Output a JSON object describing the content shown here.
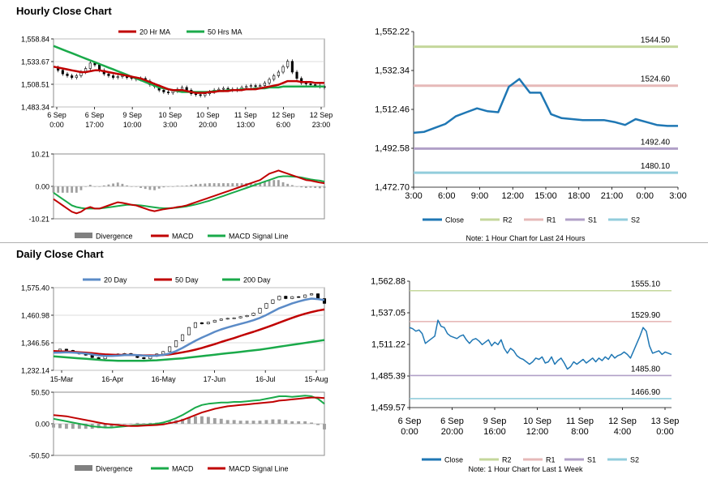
{
  "sections": {
    "hourly_title": "Hourly Close Chart",
    "daily_title": "Daily Close Chart"
  },
  "colors": {
    "red": "#c00000",
    "green": "#1aaa4a",
    "blue": "#5b8bc7",
    "close_blue": "#1f77b4",
    "r2": "#c4d79b",
    "r1": "#e6b9b8",
    "s1": "#b1a0c7",
    "s2": "#92cddc",
    "gray": "#808080"
  },
  "chart_data": [
    {
      "id": "hourly_price",
      "type": "line",
      "legend": [
        "20 Hr MA",
        "50 Hrs MA"
      ],
      "y_ticks": [
        "1,558.84",
        "1,533.67",
        "1,508.51",
        "1,483.34"
      ],
      "ylim": [
        1483.34,
        1558.84
      ],
      "x_ticks": [
        {
          "line1": "6 Sep",
          "line2": "0:00"
        },
        {
          "line1": "6 Sep",
          "line2": "17:00"
        },
        {
          "line1": "9 Sep",
          "line2": "10:00"
        },
        {
          "line1": "10 Sep",
          "line2": "3:00"
        },
        {
          "line1": "10 Sep",
          "line2": "20:00"
        },
        {
          "line1": "11 Sep",
          "line2": "13:00"
        },
        {
          "line1": "12 Sep",
          "line2": "6:00"
        },
        {
          "line1": "12 Sep",
          "line2": "23:00"
        }
      ],
      "series": [
        {
          "name": "Close",
          "values": [
            1527,
            1524,
            1520,
            1518,
            1516,
            1518,
            1522,
            1526,
            1532,
            1530,
            1524,
            1520,
            1518,
            1516,
            1517,
            1518,
            1516,
            1515,
            1514,
            1515,
            1512,
            1508,
            1506,
            1502,
            1500,
            1499,
            1501,
            1503,
            1505,
            1502,
            1498,
            1497,
            1496,
            1498,
            1500,
            1502,
            1503,
            1504,
            1503,
            1502,
            1503,
            1505,
            1506,
            1507,
            1506,
            1507,
            1510,
            1514,
            1518,
            1522,
            1528,
            1534,
            1522,
            1515,
            1510,
            1509,
            1508,
            1507,
            1506,
            1505
          ]
        },
        {
          "name": "20 Hr MA",
          "values": [
            1528,
            1527,
            1526,
            1525,
            1524,
            1523,
            1522,
            1522,
            1523,
            1524,
            1524,
            1523,
            1522,
            1521,
            1520,
            1519,
            1518,
            1517,
            1516,
            1515,
            1513,
            1511,
            1509,
            1507,
            1505,
            1503,
            1502,
            1502,
            1502,
            1501,
            1500,
            1499,
            1499,
            1499,
            1500,
            1500,
            1501,
            1501,
            1501,
            1502,
            1502,
            1502,
            1503,
            1503,
            1503,
            1504,
            1505,
            1506,
            1507,
            1508,
            1510,
            1512,
            1512,
            1512,
            1511,
            1511,
            1511,
            1510,
            1510,
            1510
          ]
        },
        {
          "name": "50 Hrs MA",
          "values": [
            1551,
            1549,
            1547,
            1545,
            1543,
            1541,
            1539,
            1537,
            1535,
            1533,
            1531,
            1529,
            1527,
            1525,
            1523,
            1521,
            1519,
            1517,
            1515,
            1513,
            1511,
            1509,
            1507,
            1505,
            1504,
            1503,
            1502,
            1501,
            1500,
            1500,
            1500,
            1500,
            1500,
            1500,
            1500,
            1501,
            1501,
            1501,
            1502,
            1502,
            1502,
            1503,
            1503,
            1503,
            1504,
            1504,
            1504,
            1505,
            1505,
            1505,
            1506,
            1506,
            1506,
            1506,
            1506,
            1506,
            1506,
            1506,
            1506,
            1506
          ]
        }
      ]
    },
    {
      "id": "hourly_macd",
      "type": "line",
      "legend": [
        "Divergence",
        "MACD",
        "MACD Signal Line"
      ],
      "y_ticks": [
        "10.21",
        "0.00",
        "-10.21"
      ],
      "ylim": [
        -10.21,
        10.21
      ],
      "series": [
        {
          "name": "MACD",
          "values": [
            -4,
            -5,
            -6,
            -7,
            -8,
            -8.5,
            -8,
            -7,
            -6.5,
            -7,
            -7,
            -6.5,
            -6,
            -5.5,
            -5,
            -5.2,
            -5.5,
            -5.8,
            -6,
            -6.5,
            -7,
            -7.5,
            -7.8,
            -7.5,
            -7.2,
            -7,
            -6.8,
            -6.5,
            -6.3,
            -6,
            -5.5,
            -5,
            -4.5,
            -4,
            -3.5,
            -3,
            -2.5,
            -2,
            -1.5,
            -1,
            -0.5,
            0,
            0.5,
            1,
            1.5,
            2,
            3,
            4,
            4.5,
            5,
            4.5,
            4,
            3.5,
            3,
            2.5,
            2,
            1.8,
            1.5,
            1.2,
            1
          ]
        },
        {
          "name": "MACD Signal Line",
          "values": [
            -2,
            -3,
            -4,
            -5,
            -6,
            -6.5,
            -6.8,
            -7,
            -7,
            -7,
            -7,
            -6.8,
            -6.6,
            -6.4,
            -6.2,
            -6,
            -5.8,
            -5.8,
            -5.9,
            -6,
            -6.2,
            -6.4,
            -6.6,
            -6.8,
            -6.9,
            -6.9,
            -6.8,
            -6.7,
            -6.5,
            -6.3,
            -6,
            -5.7,
            -5.3,
            -4.9,
            -4.5,
            -4,
            -3.5,
            -3,
            -2.5,
            -2,
            -1.5,
            -1,
            -0.5,
            0,
            0.5,
            1,
            1.5,
            2,
            2.5,
            3,
            3.2,
            3.2,
            3.1,
            3,
            2.8,
            2.5,
            2.2,
            2,
            1.8,
            1.5
          ]
        }
      ]
    },
    {
      "id": "hourly_levels",
      "type": "line",
      "y_ticks": [
        "1,552.22",
        "1,532.34",
        "1,512.46",
        "1,492.58",
        "1,472.70"
      ],
      "ylim": [
        1472.7,
        1552.22
      ],
      "x_ticks": [
        "3:00",
        "6:00",
        "9:00",
        "12:00",
        "15:00",
        "18:00",
        "21:00",
        "0:00",
        "3:00"
      ],
      "levels": [
        {
          "name": "R2",
          "value": 1544.5,
          "label": "1544.50"
        },
        {
          "name": "R1",
          "value": 1524.6,
          "label": "1524.60"
        },
        {
          "name": "S1",
          "value": 1492.4,
          "label": "1492.40"
        },
        {
          "name": "S2",
          "value": 1480.1,
          "label": "1480.10"
        }
      ],
      "series": [
        {
          "name": "Close",
          "values": [
            1500.5,
            1501,
            1503,
            1505,
            1509,
            1511,
            1513,
            1511.5,
            1511,
            1524,
            1528,
            1521,
            1521,
            1510,
            1508,
            1507.5,
            1507,
            1507,
            1507,
            1506,
            1504.5,
            1507.5,
            1506,
            1504.5,
            1504,
            1504
          ]
        }
      ],
      "legend": [
        "Close",
        "R2",
        "R1",
        "S1",
        "S2"
      ],
      "note": "Note: 1 Hour Chart for Last 24 Hours"
    },
    {
      "id": "daily_price",
      "type": "line",
      "legend": [
        "20 Day",
        "50 Day",
        "200 Day"
      ],
      "y_ticks": [
        "1,575.40",
        "1,460.98",
        "1,346.56",
        "1,232.14"
      ],
      "ylim": [
        1232.14,
        1575.4
      ],
      "x_ticks": [
        "15-Mar",
        "16-Apr",
        "16-May",
        "17-Jun",
        "16-Jul",
        "15-Aug"
      ],
      "series": [
        {
          "name": "Close",
          "values": [
            1310,
            1320,
            1315,
            1305,
            1300,
            1295,
            1285,
            1280,
            1290,
            1298,
            1300,
            1302,
            1295,
            1285,
            1280,
            1290,
            1300,
            1310,
            1330,
            1355,
            1380,
            1410,
            1430,
            1425,
            1432,
            1440,
            1445,
            1448,
            1450,
            1455,
            1460,
            1470,
            1490,
            1510,
            1525,
            1540,
            1530,
            1538,
            1535,
            1545,
            1550,
            1530,
            1510
          ]
        },
        {
          "name": "20 Day",
          "values": [
            1305,
            1306,
            1307,
            1306,
            1304,
            1302,
            1298,
            1294,
            1292,
            1292,
            1293,
            1295,
            1296,
            1295,
            1293,
            1292,
            1293,
            1296,
            1302,
            1312,
            1325,
            1340,
            1355,
            1368,
            1380,
            1392,
            1402,
            1410,
            1418,
            1425,
            1432,
            1440,
            1450,
            1462,
            1476,
            1490,
            1500,
            1510,
            1518,
            1525,
            1530,
            1528,
            1524
          ]
        },
        {
          "name": "50 Day",
          "values": [
            1312,
            1311,
            1310,
            1309,
            1307,
            1305,
            1303,
            1300,
            1298,
            1297,
            1296,
            1296,
            1296,
            1295,
            1294,
            1294,
            1294,
            1296,
            1298,
            1302,
            1307,
            1312,
            1318,
            1325,
            1333,
            1341,
            1350,
            1358,
            1366,
            1375,
            1384,
            1392,
            1401,
            1410,
            1420,
            1430,
            1440,
            1450,
            1459,
            1467,
            1474,
            1480,
            1485
          ]
        },
        {
          "name": "200 Day",
          "values": [
            1290,
            1288,
            1286,
            1284,
            1282,
            1280,
            1278,
            1276,
            1274,
            1273,
            1272,
            1272,
            1272,
            1272,
            1272,
            1273,
            1274,
            1276,
            1278,
            1280,
            1282,
            1285,
            1288,
            1291,
            1294,
            1297,
            1300,
            1303,
            1306,
            1309,
            1312,
            1315,
            1318,
            1322,
            1326,
            1330,
            1334,
            1338,
            1342,
            1346,
            1350,
            1354,
            1358
          ]
        }
      ]
    },
    {
      "id": "daily_macd",
      "type": "line",
      "legend": [
        "Divergence",
        "MACD",
        "MACD Signal Line"
      ],
      "y_ticks": [
        "50.50",
        "0.00",
        "-50.50"
      ],
      "ylim": [
        -50.5,
        50.5
      ],
      "series": [
        {
          "name": "MACD",
          "values": [
            8,
            6,
            4,
            2,
            0,
            -2,
            -4,
            -5,
            -6,
            -6,
            -5,
            -4,
            -3,
            -2,
            -2,
            -1,
            0,
            2,
            5,
            9,
            14,
            20,
            26,
            30,
            32,
            33,
            34,
            34,
            35,
            35,
            36,
            37,
            38,
            40,
            42,
            44,
            44,
            43,
            44,
            45,
            44,
            40,
            32
          ]
        },
        {
          "name": "MACD Signal Line",
          "values": [
            14,
            13,
            12,
            10,
            8,
            6,
            4,
            2,
            0,
            -1,
            -2,
            -3,
            -3.5,
            -3.5,
            -3,
            -2.5,
            -2,
            -1,
            1,
            3,
            6,
            10,
            14,
            18,
            21,
            24,
            26,
            28,
            29,
            30,
            31,
            32,
            33,
            34,
            35,
            37,
            38,
            39,
            40,
            41,
            42,
            42,
            41
          ]
        }
      ]
    },
    {
      "id": "daily_levels",
      "type": "line",
      "y_ticks": [
        "1,562.88",
        "1,537.05",
        "1,511.22",
        "1,485.39",
        "1,459.57"
      ],
      "ylim": [
        1459.57,
        1562.88
      ],
      "x_ticks": [
        {
          "line1": "6 Sep",
          "line2": "0:00"
        },
        {
          "line1": "6 Sep",
          "line2": "20:00"
        },
        {
          "line1": "9 Sep",
          "line2": "16:00"
        },
        {
          "line1": "10 Sep",
          "line2": "12:00"
        },
        {
          "line1": "11 Sep",
          "line2": "8:00"
        },
        {
          "line1": "12 Sep",
          "line2": "4:00"
        },
        {
          "line1": "13 Sep",
          "line2": "0:00"
        }
      ],
      "levels": [
        {
          "name": "R2",
          "value": 1555.1,
          "label": "1555.10"
        },
        {
          "name": "R1",
          "value": 1529.9,
          "label": "1529.90"
        },
        {
          "name": "S1",
          "value": 1485.8,
          "label": "1485.80"
        },
        {
          "name": "S2",
          "value": 1466.9,
          "label": "1466.90"
        }
      ],
      "series": [
        {
          "name": "Close",
          "values": [
            1525,
            1524,
            1522,
            1523,
            1520,
            1512,
            1514,
            1516,
            1518,
            1531,
            1526,
            1525,
            1520,
            1518,
            1517,
            1516,
            1518,
            1519,
            1515,
            1512,
            1515,
            1516,
            1514,
            1511,
            1513,
            1515,
            1510,
            1513,
            1511,
            1515,
            1508,
            1504,
            1508,
            1506,
            1502,
            1500,
            1499,
            1497,
            1495,
            1497,
            1500,
            1499,
            1501,
            1496,
            1497,
            1501,
            1495,
            1498,
            1500,
            1496,
            1491,
            1493,
            1497,
            1495,
            1497,
            1499,
            1496,
            1498,
            1500,
            1497,
            1500,
            1498,
            1501,
            1499,
            1503,
            1500,
            1502,
            1503,
            1505,
            1503,
            1500,
            1506,
            1512,
            1518,
            1525,
            1522,
            1510,
            1504,
            1505,
            1506,
            1503,
            1505,
            1504,
            1503
          ]
        }
      ],
      "legend": [
        "Close",
        "R2",
        "R1",
        "S1",
        "S2"
      ],
      "note": "Note: 1 Hour Chart for Last 1 Week"
    }
  ]
}
